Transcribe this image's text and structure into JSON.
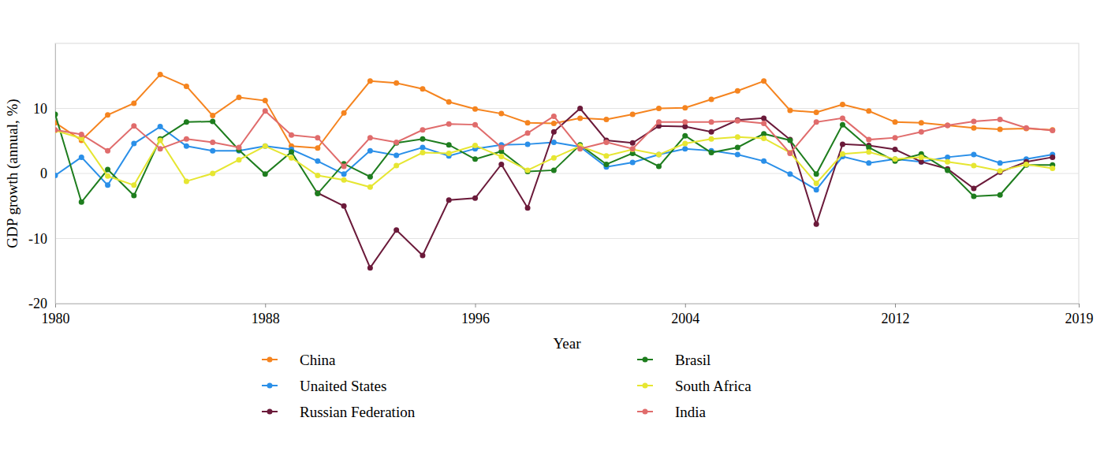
{
  "chart_data": {
    "type": "line",
    "x_label": "Year",
    "y_label": "GDP growth (annual, %)",
    "x": [
      1980,
      1981,
      1982,
      1983,
      1984,
      1985,
      1986,
      1987,
      1988,
      1989,
      1990,
      1991,
      1992,
      1993,
      1994,
      1995,
      1996,
      1997,
      1998,
      1999,
      2000,
      2001,
      2002,
      2003,
      2004,
      2005,
      2006,
      2007,
      2008,
      2009,
      2010,
      2011,
      2012,
      2013,
      2014,
      2015,
      2016,
      2017,
      2018
    ],
    "xlim": [
      1980,
      2019
    ],
    "xticks": [
      1980,
      1988,
      1996,
      2004,
      2012,
      2019
    ],
    "ylim": [
      -20,
      20
    ],
    "yticks": [
      -20,
      -10,
      0,
      10
    ],
    "grid": true,
    "legend": "bottom",
    "series": [
      {
        "name": "China",
        "color": "#f5841f",
        "marker": "circle",
        "values": [
          7.8,
          5.1,
          9.0,
          10.8,
          15.2,
          13.4,
          8.9,
          11.7,
          11.2,
          4.2,
          3.9,
          9.3,
          14.2,
          13.9,
          13.0,
          11.0,
          9.9,
          9.2,
          7.8,
          7.7,
          8.5,
          8.3,
          9.1,
          10.0,
          10.1,
          11.4,
          12.7,
          14.2,
          9.7,
          9.4,
          10.6,
          9.6,
          7.9,
          7.8,
          7.4,
          7.0,
          6.8,
          6.9,
          6.7
        ]
      },
      {
        "name": "Unaited States",
        "color": "#2a8fe8",
        "marker": "circle",
        "values": [
          -0.3,
          2.5,
          -1.8,
          4.6,
          7.2,
          4.2,
          3.5,
          3.5,
          4.2,
          3.7,
          1.9,
          -0.1,
          3.5,
          2.8,
          4.0,
          2.7,
          3.8,
          4.4,
          4.5,
          4.8,
          4.1,
          1.0,
          1.7,
          2.9,
          3.8,
          3.5,
          2.9,
          1.9,
          -0.1,
          -2.5,
          2.6,
          1.6,
          2.2,
          1.8,
          2.5,
          2.9,
          1.6,
          2.2,
          2.9
        ]
      },
      {
        "name": "Russian Federation",
        "color": "#6b1a3a",
        "marker": "circle",
        "values": [
          null,
          null,
          null,
          null,
          null,
          null,
          null,
          null,
          null,
          null,
          -3.0,
          -5.0,
          -14.5,
          -8.7,
          -12.6,
          -4.1,
          -3.8,
          1.4,
          -5.3,
          6.4,
          10.0,
          5.1,
          4.7,
          7.3,
          7.2,
          6.4,
          8.2,
          8.5,
          5.2,
          -7.8,
          4.5,
          4.3,
          3.7,
          1.8,
          0.7,
          -2.3,
          0.2,
          1.8,
          2.5
        ]
      },
      {
        "name": "Brasil",
        "color": "#1e7d1e",
        "marker": "circle",
        "values": [
          9.1,
          -4.4,
          0.6,
          -3.4,
          5.3,
          7.9,
          8.0,
          3.6,
          -0.1,
          3.3,
          -3.1,
          1.5,
          -0.5,
          4.7,
          5.3,
          4.4,
          2.2,
          3.4,
          0.3,
          0.5,
          4.4,
          1.4,
          3.1,
          1.1,
          5.8,
          3.2,
          4.0,
          6.1,
          5.1,
          -0.1,
          7.5,
          4.0,
          1.9,
          3.0,
          0.5,
          -3.5,
          -3.3,
          1.3,
          1.3
        ]
      },
      {
        "name": "South Africa",
        "color": "#e6e632",
        "marker": "circle",
        "values": [
          6.6,
          5.4,
          -0.4,
          -1.8,
          5.1,
          -1.2,
          0.0,
          2.1,
          4.2,
          2.4,
          -0.3,
          -1.0,
          -2.1,
          1.2,
          3.2,
          3.1,
          4.3,
          2.6,
          0.5,
          2.4,
          4.2,
          2.7,
          3.7,
          2.9,
          4.6,
          5.3,
          5.6,
          5.4,
          3.2,
          -1.5,
          3.0,
          3.3,
          2.2,
          2.5,
          1.8,
          1.2,
          0.4,
          1.4,
          0.8
        ]
      },
      {
        "name": "India",
        "color": "#e06c6c",
        "marker": "circle",
        "values": [
          6.7,
          6.0,
          3.5,
          7.3,
          3.8,
          5.3,
          4.8,
          4.0,
          9.6,
          5.9,
          5.5,
          1.1,
          5.5,
          4.8,
          6.7,
          7.6,
          7.5,
          4.0,
          6.2,
          8.8,
          3.8,
          4.8,
          3.8,
          7.9,
          7.9,
          7.9,
          8.1,
          7.7,
          3.1,
          7.9,
          8.5,
          5.2,
          5.5,
          6.4,
          7.4,
          8.0,
          8.3,
          7.0,
          6.6
        ]
      }
    ]
  }
}
